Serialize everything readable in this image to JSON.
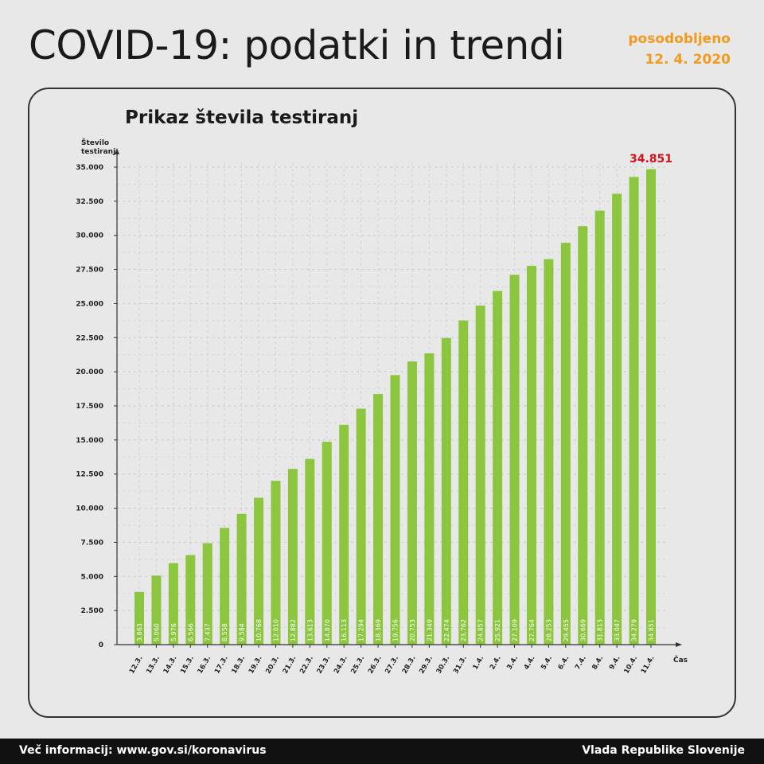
{
  "header": {
    "title": "COVID-19: podatki in trendi",
    "updated_label": "posodobljeno",
    "updated_date": "12. 4. 2020"
  },
  "footer": {
    "left": "Več informacij: www.gov.si/koronavirus",
    "right": "Vlada Republike Slovenije"
  },
  "colors": {
    "bar": "#8cc63f",
    "highlight": "#d0121b",
    "accent": "#f39a1e"
  },
  "chart_data": {
    "type": "bar",
    "title": "Prikaz števila testiranj",
    "ylabel": "Število testiranj",
    "xlabel": "Čas",
    "ylim": [
      0,
      35000
    ],
    "yticks": [
      0,
      2500,
      5000,
      7500,
      10000,
      12500,
      15000,
      17500,
      20000,
      22500,
      25000,
      27500,
      30000,
      32500,
      35000
    ],
    "ytick_labels": [
      "0",
      "2.500",
      "5.000",
      "7.500",
      "10.000",
      "12.500",
      "15.000",
      "17.500",
      "20.000",
      "22.500",
      "25.000",
      "27.500",
      "30.000",
      "32.500",
      "35.000"
    ],
    "grid": true,
    "categories": [
      "12.3.",
      "13.3.",
      "14.3.",
      "15.3.",
      "16.3.",
      "17.3.",
      "18.3.",
      "19.3.",
      "20.3.",
      "21.3.",
      "22.3.",
      "23.3.",
      "24.3.",
      "25.3.",
      "26.3.",
      "27.3.",
      "28.3.",
      "29.3.",
      "30.3.",
      "31.3.",
      "1.4.",
      "2.4.",
      "3.4.",
      "4.4.",
      "5.4.",
      "6.4.",
      "7.4.",
      "8.4.",
      "9.4.",
      "10.4.",
      "11.4."
    ],
    "values": [
      3863,
      5060,
      5976,
      6566,
      7437,
      8558,
      9584,
      10768,
      12010,
      12882,
      13613,
      14870,
      16113,
      17294,
      18369,
      19756,
      20753,
      21349,
      22474,
      23762,
      24857,
      25921,
      27109,
      27764,
      28253,
      29455,
      30669,
      31813,
      33047,
      34279,
      34851
    ],
    "value_labels": [
      "3.863",
      "5.060",
      "5.976",
      "6.566",
      "7.437",
      "8.558",
      "9.584",
      "10.768",
      "12.010",
      "12.882",
      "13.613",
      "14.870",
      "16.113",
      "17.294",
      "18.369",
      "19.756",
      "20.753",
      "21.349",
      "22.474",
      "23.762",
      "24.857",
      "25.921",
      "27.109",
      "27.764",
      "28.253",
      "29.455",
      "30.669",
      "31.813",
      "33.047",
      "34.279",
      "34.851"
    ],
    "annotation": "34.851"
  }
}
